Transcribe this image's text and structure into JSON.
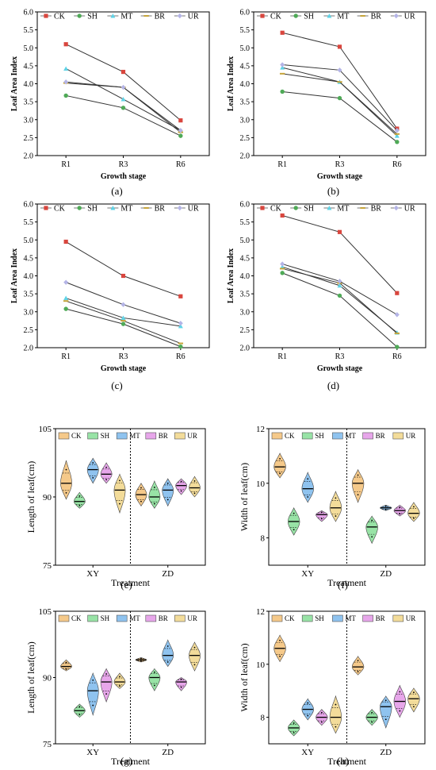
{
  "figure": {
    "series": [
      {
        "name": "CK",
        "color": "#d9463e",
        "marker": "square"
      },
      {
        "name": "SH",
        "color": "#4faa57",
        "marker": "circle"
      },
      {
        "name": "MT",
        "color": "#5fd3e6",
        "marker": "triangle"
      },
      {
        "name": "BR",
        "color": "#c6a43a",
        "marker": "dash"
      },
      {
        "name": "UR",
        "color": "#b4b4e6",
        "marker": "diamond"
      }
    ],
    "violin_colors": [
      "#f5c98a",
      "#98e3a6",
      "#8fc3ef",
      "#e7a6ea",
      "#f3dc9a"
    ]
  },
  "chart_data": [
    {
      "panel": "(a)",
      "type": "line",
      "title": "",
      "xlabel": "Growth stage",
      "ylabel": "Leaf Area Index",
      "categories": [
        "R1",
        "R3",
        "R6"
      ],
      "ylim": [
        2.0,
        6.0
      ],
      "yticks": [
        "2.0",
        "2.5",
        "3.0",
        "3.5",
        "4.0",
        "4.5",
        "5.0",
        "5.5",
        "6.0"
      ],
      "legend": "top",
      "grid": false,
      "series": [
        {
          "name": "CK",
          "values": [
            5.1,
            4.33,
            2.98
          ]
        },
        {
          "name": "SH",
          "values": [
            3.67,
            3.33,
            2.55
          ]
        },
        {
          "name": "MT",
          "values": [
            4.42,
            3.57,
            2.7
          ]
        },
        {
          "name": "BR",
          "values": [
            4.02,
            3.9,
            2.65
          ]
        },
        {
          "name": "UR",
          "values": [
            4.05,
            3.9,
            2.7
          ]
        }
      ]
    },
    {
      "panel": "(b)",
      "type": "line",
      "title": "",
      "xlabel": "Growth stage",
      "ylabel": "Leaf Area Index",
      "categories": [
        "R1",
        "R3",
        "R6"
      ],
      "ylim": [
        2.0,
        6.0
      ],
      "yticks": [
        "2.0",
        "2.5",
        "3.0",
        "3.5",
        "4.0",
        "4.5",
        "5.0",
        "5.5",
        "6.0"
      ],
      "legend": "top",
      "grid": false,
      "series": [
        {
          "name": "CK",
          "values": [
            5.42,
            5.03,
            2.75
          ]
        },
        {
          "name": "SH",
          "values": [
            3.78,
            3.6,
            2.38
          ]
        },
        {
          "name": "MT",
          "values": [
            4.45,
            4.05,
            2.55
          ]
        },
        {
          "name": "BR",
          "values": [
            4.28,
            4.05,
            2.6
          ]
        },
        {
          "name": "UR",
          "values": [
            4.53,
            4.38,
            2.7
          ]
        }
      ]
    },
    {
      "panel": "(c)",
      "type": "line",
      "title": "",
      "xlabel": "Growth stage",
      "ylabel": "Leaf Area Index",
      "categories": [
        "R1",
        "R3",
        "R6"
      ],
      "ylim": [
        2.0,
        6.0
      ],
      "yticks": [
        "2.0",
        "2.5",
        "3.0",
        "3.5",
        "4.0",
        "4.5",
        "5.0",
        "5.5",
        "6.0"
      ],
      "legend": "top",
      "grid": false,
      "series": [
        {
          "name": "CK",
          "values": [
            4.95,
            4.0,
            3.43
          ]
        },
        {
          "name": "SH",
          "values": [
            3.08,
            2.66,
            2.03
          ]
        },
        {
          "name": "MT",
          "values": [
            3.38,
            2.83,
            2.6
          ]
        },
        {
          "name": "BR",
          "values": [
            3.3,
            2.75,
            2.12
          ]
        },
        {
          "name": "UR",
          "values": [
            3.82,
            3.2,
            2.68
          ]
        }
      ]
    },
    {
      "panel": "(d)",
      "type": "line",
      "title": "",
      "xlabel": "Growth stage",
      "ylabel": "Leaf Area Index",
      "categories": [
        "R1",
        "R3",
        "R6"
      ],
      "ylim": [
        2.0,
        6.0
      ],
      "yticks": [
        "2.0",
        "2.5",
        "3.0",
        "3.5",
        "4.0",
        "4.5",
        "5.0",
        "5.5",
        "6.0"
      ],
      "legend": "top",
      "grid": false,
      "series": [
        {
          "name": "CK",
          "values": [
            5.68,
            5.22,
            3.52
          ]
        },
        {
          "name": "SH",
          "values": [
            4.08,
            3.45,
            2.02
          ]
        },
        {
          "name": "MT",
          "values": [
            4.25,
            3.73,
            2.42
          ]
        },
        {
          "name": "BR",
          "values": [
            4.2,
            3.8,
            2.4
          ]
        },
        {
          "name": "UR",
          "values": [
            4.33,
            3.85,
            2.92
          ]
        }
      ]
    },
    {
      "panel": "(e)",
      "type": "violin",
      "xlabel": "Treatment",
      "ylabel": "Length of leaf(cm)",
      "groups": [
        "XY",
        "ZD"
      ],
      "ylim": [
        75,
        105
      ],
      "yticks": [
        "75",
        "90",
        "105"
      ],
      "legend": "top",
      "series": [
        {
          "name": "CK",
          "medians": [
            93,
            90.5
          ],
          "mins": [
            89.5,
            88
          ],
          "maxs": [
            98,
            93
          ]
        },
        {
          "name": "SH",
          "medians": [
            89,
            90
          ],
          "mins": [
            87.5,
            87.5
          ],
          "maxs": [
            91,
            93.5
          ]
        },
        {
          "name": "MT",
          "medians": [
            96,
            91.5
          ],
          "mins": [
            93,
            88
          ],
          "maxs": [
            98.5,
            94
          ]
        },
        {
          "name": "BR",
          "medians": [
            95,
            92.5
          ],
          "mins": [
            93,
            90.5
          ],
          "maxs": [
            97.5,
            94
          ]
        },
        {
          "name": "UR",
          "medians": [
            91.5,
            92
          ],
          "mins": [
            86.5,
            90
          ],
          "maxs": [
            95,
            94.5
          ]
        }
      ]
    },
    {
      "panel": "(f)",
      "type": "violin",
      "xlabel": "Treatment",
      "ylabel": "Width of leaf(cm)",
      "groups": [
        "XY",
        "ZD"
      ],
      "ylim": [
        7,
        12
      ],
      "yticks": [
        "8",
        "10",
        "12"
      ],
      "legend": "top",
      "series": [
        {
          "name": "CK",
          "medians": [
            10.6,
            10.0
          ],
          "mins": [
            10.2,
            9.3
          ],
          "maxs": [
            11.1,
            10.5
          ]
        },
        {
          "name": "SH",
          "medians": [
            8.6,
            8.4
          ],
          "mins": [
            8.1,
            7.8
          ],
          "maxs": [
            9.1,
            8.8
          ]
        },
        {
          "name": "MT",
          "medians": [
            9.8,
            9.1
          ],
          "mins": [
            9.3,
            9.0
          ],
          "maxs": [
            10.4,
            9.2
          ]
        },
        {
          "name": "BR",
          "medians": [
            8.85,
            9.0
          ],
          "mins": [
            8.6,
            8.8
          ],
          "maxs": [
            9.0,
            9.2
          ]
        },
        {
          "name": "UR",
          "medians": [
            9.1,
            8.9
          ],
          "mins": [
            8.6,
            8.6
          ],
          "maxs": [
            9.7,
            9.3
          ]
        }
      ]
    },
    {
      "panel": "(g)",
      "type": "violin",
      "xlabel": "Treatment",
      "ylabel": "Length of leaf(cm)",
      "groups": [
        "XY",
        "ZD"
      ],
      "ylim": [
        75,
        105
      ],
      "yticks": [
        "75",
        "90",
        "105"
      ],
      "legend": "top",
      "series": [
        {
          "name": "CK",
          "medians": [
            92.5,
            94
          ],
          "mins": [
            91.5,
            93.5
          ],
          "maxs": [
            94,
            94.5
          ]
        },
        {
          "name": "SH",
          "medians": [
            82.5,
            90
          ],
          "mins": [
            81,
            87
          ],
          "maxs": [
            84,
            92
          ]
        },
        {
          "name": "MT",
          "medians": [
            87,
            95
          ],
          "mins": [
            81.5,
            92.5
          ],
          "maxs": [
            91,
            98.5
          ]
        },
        {
          "name": "BR",
          "medians": [
            89,
            89
          ],
          "mins": [
            84.5,
            87
          ],
          "maxs": [
            92,
            90
          ]
        },
        {
          "name": "UR",
          "medians": [
            89,
            95
          ],
          "mins": [
            87.5,
            91.5
          ],
          "maxs": [
            91,
            98
          ]
        }
      ]
    },
    {
      "panel": "(h)",
      "type": "violin",
      "xlabel": "Treatment",
      "ylabel": "Width of leaf(cm)",
      "groups": [
        "XY",
        "ZD"
      ],
      "ylim": [
        7,
        12
      ],
      "yticks": [
        "8",
        "10",
        "12"
      ],
      "legend": "top",
      "series": [
        {
          "name": "CK",
          "medians": [
            10.6,
            9.9
          ],
          "mins": [
            10.1,
            9.6
          ],
          "maxs": [
            11.1,
            10.3
          ]
        },
        {
          "name": "SH",
          "medians": [
            7.6,
            8.0
          ],
          "mins": [
            7.3,
            7.7
          ],
          "maxs": [
            7.9,
            8.3
          ]
        },
        {
          "name": "MT",
          "medians": [
            8.3,
            8.4
          ],
          "mins": [
            7.9,
            7.6
          ],
          "maxs": [
            8.7,
            8.8
          ]
        },
        {
          "name": "BR",
          "medians": [
            8.0,
            8.6
          ],
          "mins": [
            7.7,
            8.0
          ],
          "maxs": [
            8.3,
            9.2
          ]
        },
        {
          "name": "UR",
          "medians": [
            8.0,
            8.7
          ],
          "mins": [
            7.4,
            8.2
          ],
          "maxs": [
            8.8,
            9.1
          ]
        }
      ]
    }
  ]
}
